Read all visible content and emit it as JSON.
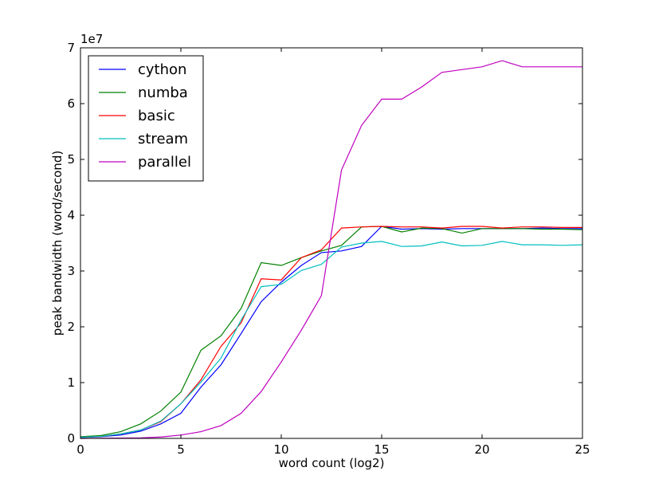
{
  "chart_data": {
    "type": "line",
    "title": "",
    "xlabel": "word count (log2)",
    "ylabel": "peak bandwidth (word/second)",
    "y_offset_label": "1e7",
    "x": [
      0,
      1,
      2,
      3,
      4,
      5,
      6,
      7,
      8,
      9,
      10,
      11,
      12,
      13,
      14,
      15,
      16,
      17,
      18,
      19,
      20,
      21,
      22,
      23,
      24,
      25
    ],
    "xlim": [
      0,
      25
    ],
    "ylim": [
      0,
      70000000
    ],
    "xticks": [
      0,
      5,
      10,
      15,
      20,
      25
    ],
    "yticks": [
      0,
      10000000,
      20000000,
      30000000,
      40000000,
      50000000,
      60000000,
      70000000
    ],
    "xtick_labels": [
      "0",
      "5",
      "10",
      "15",
      "20",
      "25"
    ],
    "ytick_labels": [
      "0",
      "1",
      "2",
      "3",
      "4",
      "5",
      "6",
      "7"
    ],
    "grid": false,
    "legend_position": "top-left",
    "series": [
      {
        "name": "cython",
        "color": "#0000ff",
        "values": [
          150000,
          300000,
          600000,
          1300000,
          2600000,
          4500000,
          9200000,
          13200000,
          18800000,
          24500000,
          28000000,
          31000000,
          33300000,
          33600000,
          34400000,
          38000000,
          37500000,
          37600000,
          37500000,
          37600000,
          37600000,
          37600000,
          37600000,
          37700000,
          37600000,
          37600000
        ]
      },
      {
        "name": "numba",
        "color": "#008000",
        "values": [
          300000,
          500000,
          1200000,
          2600000,
          4900000,
          8300000,
          15800000,
          18400000,
          23300000,
          31500000,
          31000000,
          32400000,
          33600000,
          34600000,
          37900000,
          38000000,
          37000000,
          37700000,
          37600000,
          36800000,
          37600000,
          37600000,
          37600000,
          37500000,
          37500000,
          37400000
        ]
      },
      {
        "name": "basic",
        "color": "#ff0000",
        "values": [
          200000,
          350000,
          800000,
          1500000,
          3000000,
          6200000,
          10500000,
          16500000,
          20700000,
          28600000,
          28400000,
          32400000,
          33800000,
          37700000,
          37900000,
          38000000,
          37900000,
          37900000,
          37700000,
          38000000,
          38000000,
          37700000,
          37900000,
          37900000,
          37800000,
          37800000
        ]
      },
      {
        "name": "stream",
        "color": "#00bfbf",
        "values": [
          200000,
          350000,
          800000,
          1500000,
          3100000,
          6200000,
          10100000,
          14400000,
          21200000,
          27200000,
          27600000,
          30100000,
          31200000,
          34300000,
          35000000,
          35300000,
          34400000,
          34500000,
          35200000,
          34500000,
          34600000,
          35300000,
          34700000,
          34700000,
          34600000,
          34700000
        ]
      },
      {
        "name": "parallel",
        "color": "#bf00bf",
        "values": [
          0,
          30000,
          60000,
          100000,
          250000,
          600000,
          1200000,
          2300000,
          4500000,
          8400000,
          13700000,
          19400000,
          25600000,
          48100000,
          56100000,
          60800000,
          60800000,
          63000000,
          65600000,
          66100000,
          66600000,
          67700000,
          66600000,
          66600000,
          66600000,
          66600000
        ]
      }
    ]
  }
}
